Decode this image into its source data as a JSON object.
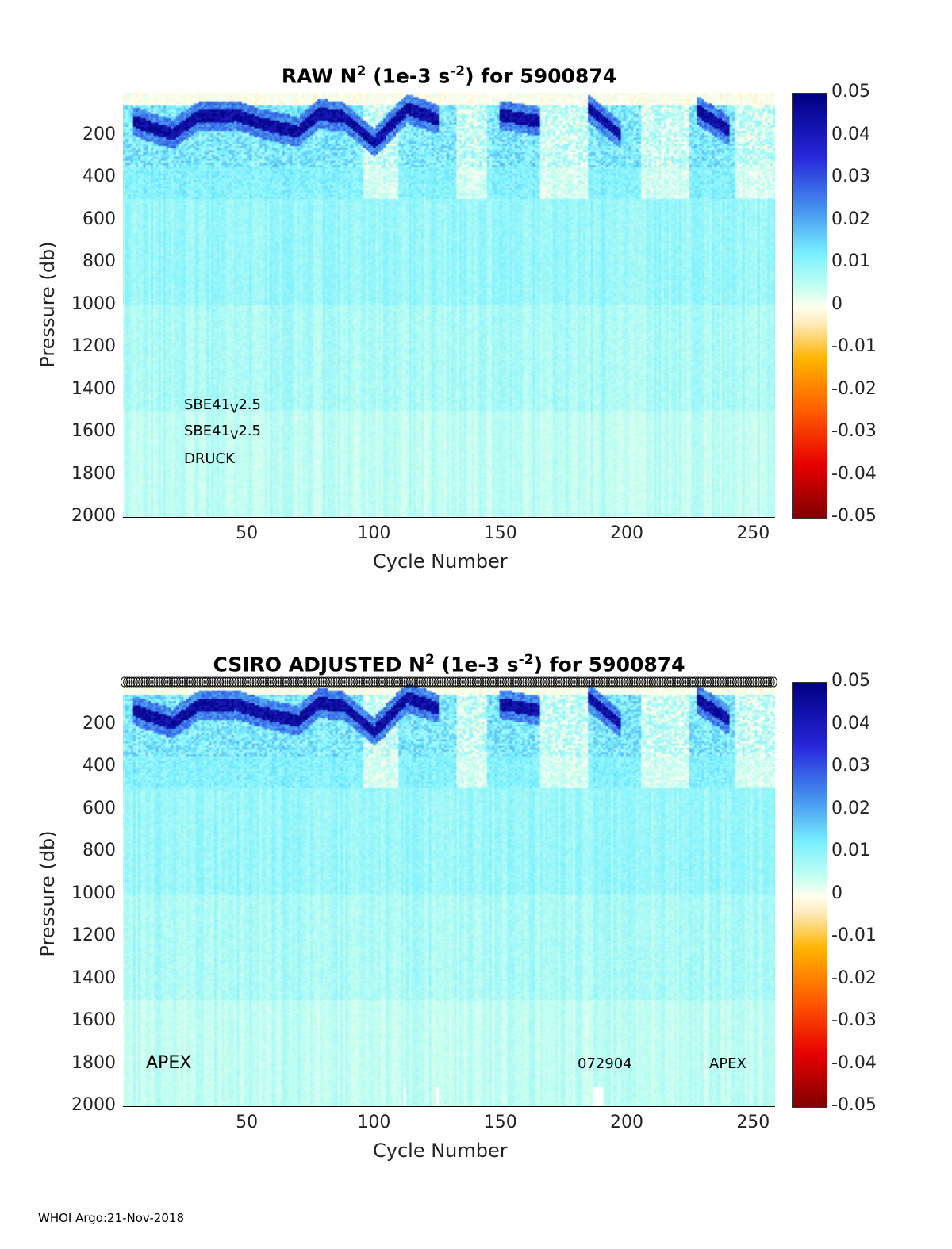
{
  "footer": "WHOI Argo:21-Nov-2018",
  "colors": {
    "background": "#ffffff",
    "text": "#000000"
  },
  "chart_data": [
    {
      "type": "heatmap",
      "title_main": "RAW N",
      "title_sup1": "2",
      "title_mid": " (1e-3 s",
      "title_sup2": "-2",
      "title_end": ") for 5900874",
      "xlabel": "Cycle Number",
      "ylabel": "Pressure (db)",
      "xlim": [
        1,
        258
      ],
      "ylim": [
        0,
        2000
      ],
      "y_reversed": true,
      "xticks": [
        "50",
        "100",
        "150",
        "200",
        "250"
      ],
      "yticks": [
        "200",
        "400",
        "600",
        "800",
        "1000",
        "1200",
        "1400",
        "1600",
        "1800",
        "2000"
      ],
      "colorbar": {
        "range": [
          -0.05,
          0.05
        ],
        "colormap": "jet-white-center",
        "ticks": [
          "0.05",
          "0.04",
          "0.03",
          "0.02",
          "0.01",
          "0",
          "-0.01",
          "-0.02",
          "-0.03",
          "-0.04",
          "-0.05"
        ]
      },
      "annotations": [
        {
          "text": "SBE41",
          "sub": "V",
          "rest": "2.5"
        },
        {
          "text": "SBE41",
          "sub": "V",
          "rest": "2.5"
        },
        {
          "text": "DRUCK",
          "sub": "",
          "rest": ""
        }
      ],
      "field_description_values": {
        "deep_value": 0.006,
        "mid_value": 0.009,
        "surface_value": 0.0,
        "max_band_value": 0.05
      },
      "high_stratification_band": [
        {
          "cycle": 5,
          "pressure": 130
        },
        {
          "cycle": 12,
          "pressure": 160
        },
        {
          "cycle": 20,
          "pressure": 190
        },
        {
          "cycle": 30,
          "pressure": 110
        },
        {
          "cycle": 45,
          "pressure": 100
        },
        {
          "cycle": 55,
          "pressure": 140
        },
        {
          "cycle": 70,
          "pressure": 180
        },
        {
          "cycle": 78,
          "pressure": 95
        },
        {
          "cycle": 88,
          "pressure": 110
        },
        {
          "cycle": 100,
          "pressure": 230
        },
        {
          "cycle": 113,
          "pressure": 70
        },
        {
          "cycle": 125,
          "pressure": 120
        },
        {
          "cycle": 150,
          "pressure": 100
        },
        {
          "cycle": 165,
          "pressure": 130
        },
        {
          "cycle": 185,
          "pressure": 70
        },
        {
          "cycle": 197,
          "pressure": 190
        },
        {
          "cycle": 228,
          "pressure": 80
        },
        {
          "cycle": 240,
          "pressure": 170
        }
      ]
    },
    {
      "type": "heatmap",
      "title_main": "CSIRO  ADJUSTED N",
      "title_sup1": "2",
      "title_mid": " (1e-3 s",
      "title_sup2": "-2",
      "title_end": ") for 5900874",
      "xlabel": "Cycle Number",
      "ylabel": "Pressure (db)",
      "xlim": [
        1,
        258
      ],
      "ylim": [
        0,
        2000
      ],
      "y_reversed": true,
      "xticks": [
        "50",
        "100",
        "150",
        "200",
        "250"
      ],
      "yticks": [
        "200",
        "400",
        "600",
        "800",
        "1000",
        "1200",
        "1400",
        "1600",
        "1800",
        "2000"
      ],
      "colorbar": {
        "range": [
          -0.05,
          0.05
        ],
        "colormap": "jet-white-center",
        "ticks": [
          "0.05",
          "0.04",
          "0.03",
          "0.02",
          "0.01",
          "0",
          "-0.01",
          "-0.02",
          "-0.03",
          "-0.04",
          "-0.05"
        ]
      },
      "annotations": [
        {
          "text": "APEX"
        },
        {
          "text": "072904"
        },
        {
          "text": "APEX"
        }
      ],
      "cycle_markers": "open circles along top for every cycle"
    }
  ]
}
